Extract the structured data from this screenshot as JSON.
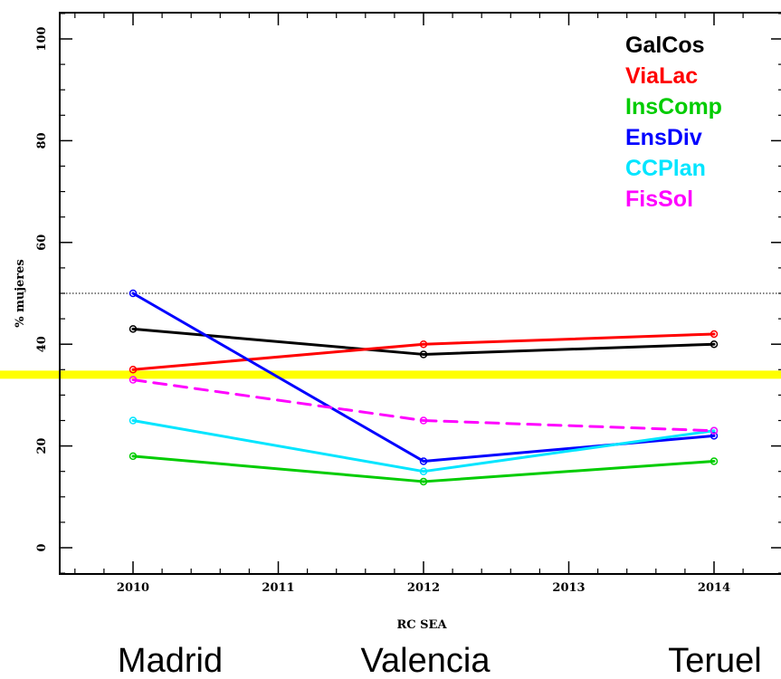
{
  "chart_data": {
    "type": "line",
    "title": "",
    "xlabel": "RC SEA",
    "ylabel": "% mujeres",
    "xlim": [
      2009.5,
      2014.3
    ],
    "ylim": [
      -5,
      105
    ],
    "x_ticks": [
      2010,
      2011,
      2012,
      2013,
      2014
    ],
    "y_ticks": [
      0,
      20,
      40,
      60,
      80,
      100
    ],
    "y_tick_labels": [
      "0",
      "20",
      "40",
      "60",
      "80",
      "100"
    ],
    "grid": false,
    "legend_position": "top-right",
    "reference_lines": [
      {
        "y": 50,
        "color": "#000000",
        "style": "dotted"
      },
      {
        "y": 34,
        "color": "#ffff00",
        "style": "solid"
      }
    ],
    "series": [
      {
        "name": "GalCos",
        "color": "#000000",
        "dashed": false,
        "x": [
          2010,
          2012,
          2014
        ],
        "y": [
          43,
          38,
          40
        ]
      },
      {
        "name": "ViaLac",
        "color": "#ff0000",
        "dashed": false,
        "x": [
          2010,
          2012,
          2014
        ],
        "y": [
          35,
          40,
          42
        ]
      },
      {
        "name": "InsComp",
        "color": "#00cc00",
        "dashed": false,
        "x": [
          2010,
          2012,
          2014
        ],
        "y": [
          18,
          13,
          17
        ]
      },
      {
        "name": "EnsDiv",
        "color": "#0000ff",
        "dashed": false,
        "x": [
          2010,
          2012,
          2014
        ],
        "y": [
          50,
          17,
          22
        ]
      },
      {
        "name": "CCPlan",
        "color": "#00e5ff",
        "dashed": false,
        "x": [
          2010,
          2012,
          2014
        ],
        "y": [
          25,
          15,
          23
        ]
      },
      {
        "name": "FisSol",
        "color": "#ff00ff",
        "dashed": true,
        "x": [
          2010,
          2012,
          2014
        ],
        "y": [
          33,
          25,
          23
        ]
      }
    ]
  },
  "cities": [
    "Madrid",
    "Valencia",
    "Teruel"
  ]
}
